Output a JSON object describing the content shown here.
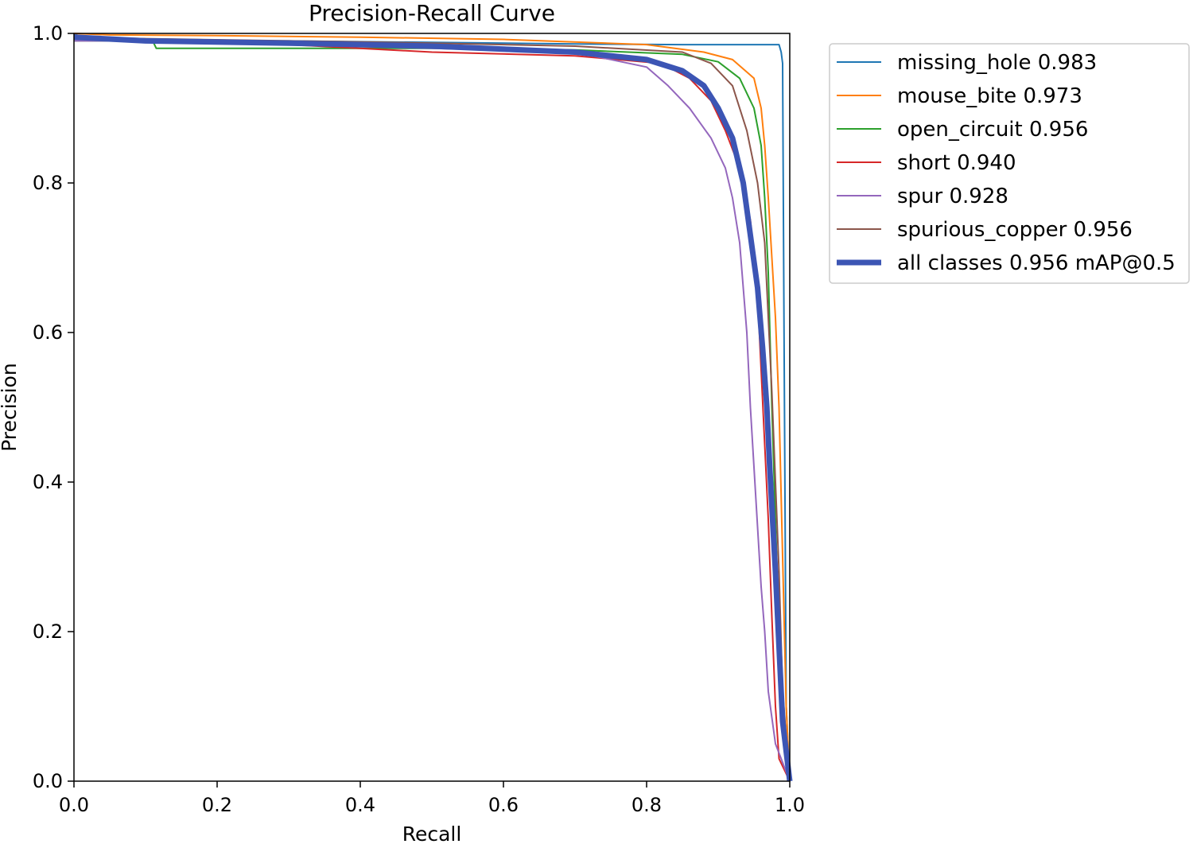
{
  "chart_data": {
    "type": "line",
    "title": "Precision-Recall Curve",
    "xlabel": "Recall",
    "ylabel": "Precision",
    "xlim": [
      0,
      1
    ],
    "ylim": [
      0,
      1
    ],
    "xticks": [
      "0.0",
      "0.2",
      "0.4",
      "0.6",
      "0.8",
      "1.0"
    ],
    "yticks": [
      "0.0",
      "0.2",
      "0.4",
      "0.6",
      "0.8",
      "1.0"
    ],
    "grid": false,
    "legend_position": "outside-right-top",
    "series": [
      {
        "name": "missing_hole 0.983",
        "color": "#1f77b4",
        "x": [
          0.0,
          0.01,
          0.1,
          0.3,
          0.5,
          0.7,
          0.85,
          0.95,
          0.985,
          0.988,
          0.99,
          0.992,
          0.995,
          1.0
        ],
        "y": [
          1.0,
          0.995,
          0.99,
          0.99,
          0.988,
          0.986,
          0.985,
          0.985,
          0.985,
          0.975,
          0.96,
          0.6,
          0.1,
          0.0
        ]
      },
      {
        "name": "mouse_bite 0.973",
        "color": "#ff7f0e",
        "x": [
          0.0,
          0.05,
          0.2,
          0.4,
          0.6,
          0.8,
          0.88,
          0.92,
          0.95,
          0.96,
          0.965,
          0.97,
          0.975,
          0.98,
          0.985,
          0.99,
          0.995,
          1.0
        ],
        "y": [
          1.0,
          0.998,
          0.997,
          0.995,
          0.992,
          0.985,
          0.975,
          0.965,
          0.94,
          0.9,
          0.85,
          0.78,
          0.7,
          0.62,
          0.5,
          0.3,
          0.1,
          0.0
        ]
      },
      {
        "name": "open_circuit 0.956",
        "color": "#2ca02c",
        "x": [
          0.0,
          0.11,
          0.115,
          0.3,
          0.5,
          0.7,
          0.85,
          0.9,
          0.93,
          0.95,
          0.96,
          0.965,
          0.97,
          0.975,
          0.98,
          0.985,
          0.99,
          1.0
        ],
        "y": [
          0.99,
          0.99,
          0.98,
          0.98,
          0.98,
          0.978,
          0.972,
          0.962,
          0.94,
          0.9,
          0.85,
          0.78,
          0.68,
          0.5,
          0.35,
          0.2,
          0.08,
          0.0
        ]
      },
      {
        "name": "short 0.940",
        "color": "#d62728",
        "x": [
          0.0,
          0.1,
          0.3,
          0.5,
          0.7,
          0.82,
          0.86,
          0.89,
          0.91,
          0.93,
          0.945,
          0.955,
          0.96,
          0.965,
          0.97,
          0.975,
          0.98,
          0.985,
          1.0
        ],
        "y": [
          0.995,
          0.99,
          0.985,
          0.975,
          0.97,
          0.96,
          0.94,
          0.91,
          0.87,
          0.82,
          0.75,
          0.65,
          0.55,
          0.45,
          0.35,
          0.22,
          0.1,
          0.03,
          0.0
        ]
      },
      {
        "name": "spur 0.928",
        "color": "#9467bd",
        "x": [
          0.0,
          0.1,
          0.3,
          0.5,
          0.7,
          0.8,
          0.83,
          0.86,
          0.89,
          0.91,
          0.92,
          0.93,
          0.94,
          0.945,
          0.95,
          0.955,
          0.96,
          0.965,
          0.97,
          0.98,
          1.0
        ],
        "y": [
          0.99,
          0.99,
          0.985,
          0.98,
          0.975,
          0.955,
          0.93,
          0.9,
          0.86,
          0.82,
          0.78,
          0.72,
          0.6,
          0.5,
          0.42,
          0.34,
          0.26,
          0.2,
          0.12,
          0.05,
          0.0
        ]
      },
      {
        "name": "spurious_copper 0.956",
        "color": "#8c564b",
        "x": [
          0.0,
          0.1,
          0.3,
          0.5,
          0.7,
          0.85,
          0.89,
          0.92,
          0.94,
          0.955,
          0.965,
          0.97,
          0.975,
          0.98,
          0.985,
          0.99,
          1.0
        ],
        "y": [
          0.995,
          0.993,
          0.99,
          0.987,
          0.983,
          0.975,
          0.96,
          0.93,
          0.87,
          0.8,
          0.72,
          0.62,
          0.52,
          0.4,
          0.28,
          0.12,
          0.0
        ]
      },
      {
        "name": "all classes 0.956 mAP@0.5",
        "color": "#3c55b4",
        "bold": true,
        "x": [
          0.0,
          0.1,
          0.3,
          0.5,
          0.7,
          0.8,
          0.85,
          0.88,
          0.9,
          0.92,
          0.935,
          0.945,
          0.955,
          0.962,
          0.968,
          0.972,
          0.976,
          0.98,
          0.985,
          0.99,
          1.0
        ],
        "y": [
          0.995,
          0.99,
          0.987,
          0.983,
          0.975,
          0.965,
          0.95,
          0.93,
          0.9,
          0.86,
          0.8,
          0.73,
          0.66,
          0.58,
          0.5,
          0.42,
          0.35,
          0.28,
          0.18,
          0.08,
          0.0
        ]
      }
    ]
  }
}
